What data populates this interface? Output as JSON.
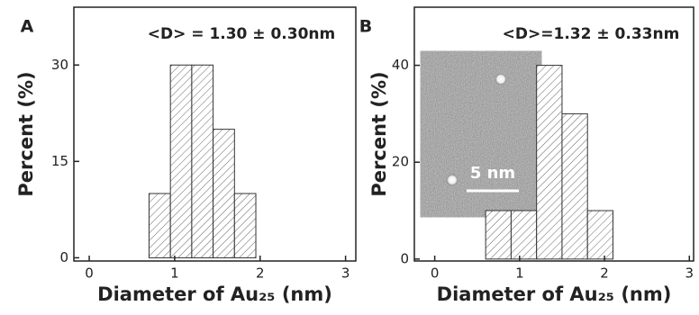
{
  "chart_data": [
    {
      "type": "histogram",
      "panel": "A",
      "annotation": "<D> = 1.30 ± 0.30nm",
      "xlabel": "Diameter of Au₂₅ (nm)",
      "ylabel": "Percent (%)",
      "bins": [
        0.7,
        0.95,
        1.2,
        1.45,
        1.7,
        1.95
      ],
      "values": [
        10,
        30,
        30,
        20,
        10
      ],
      "xlim": [
        -0.18,
        3.12
      ],
      "ylim": [
        -0.5,
        39
      ],
      "xticks": [
        0,
        1,
        2,
        3
      ],
      "yticks": [
        0,
        15,
        30
      ],
      "color": "#ffffff",
      "hatch": true
    },
    {
      "type": "histogram",
      "panel": "B",
      "annotation": "<D>=1.32 ± 0.33nm",
      "xlabel": "Diameter of Au₂₅ (nm)",
      "ylabel": "Percent (%)",
      "bins": [
        0.6,
        0.9,
        1.2,
        1.5,
        1.8,
        2.1
      ],
      "values": [
        10,
        10,
        40,
        30,
        10
      ],
      "xlim": [
        -0.24,
        3.05
      ],
      "ylim": [
        -0.4,
        52
      ],
      "xticks": [
        0,
        1,
        2,
        3
      ],
      "yticks": [
        0,
        20,
        40
      ],
      "color": "#ffffff",
      "hatch": true,
      "inset_scale_label": "5 nm"
    }
  ]
}
